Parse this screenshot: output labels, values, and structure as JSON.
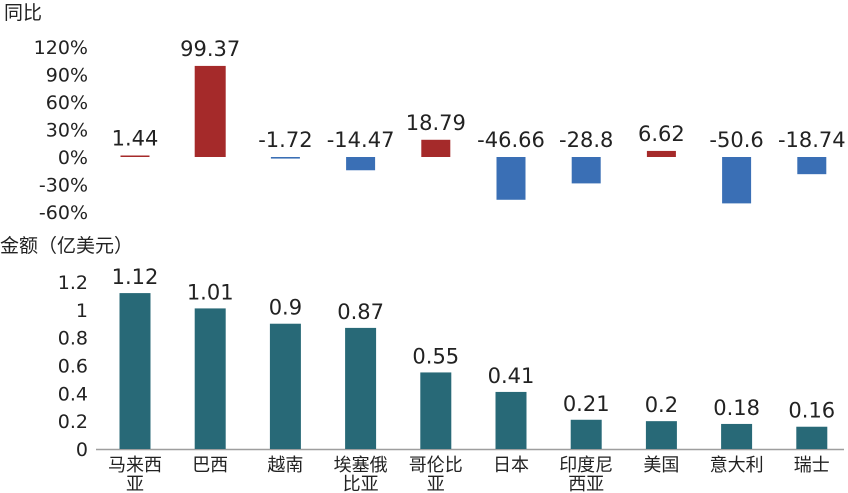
{
  "chart_data": [
    {
      "type": "bar",
      "ylabel": "同比",
      "categories": [
        "马来西亚",
        "巴西",
        "越南",
        "埃塞俄比亚",
        "哥伦比亚",
        "日本",
        "印度尼西亚",
        "美国",
        "意大利",
        "瑞士"
      ],
      "values": [
        1.44,
        99.37,
        -1.72,
        -14.47,
        18.79,
        -46.66,
        -28.8,
        6.62,
        -50.6,
        -18.74
      ],
      "value_labels": [
        "1.44",
        "99.37",
        "-1.72",
        "-14.47",
        "18.79",
        "-46.66",
        "-28.8",
        "6.62",
        "-50.6",
        "-18.74"
      ],
      "yticks": [
        "120%",
        "90%",
        "60%",
        "30%",
        "0%",
        "-30%",
        "-60%"
      ],
      "ylim": [
        -60,
        120
      ],
      "colors": {
        "positive": "#A52A2A",
        "negative": "#3A6FB5"
      },
      "grid": false
    },
    {
      "type": "bar",
      "ylabel": "金额（亿美元）",
      "categories": [
        "马来西亚",
        "巴西",
        "越南",
        "埃塞俄比亚",
        "哥伦比亚",
        "日本",
        "印度尼西亚",
        "美国",
        "意大利",
        "瑞士"
      ],
      "category_lines": [
        [
          "马来西",
          "亚"
        ],
        [
          "巴西"
        ],
        [
          "越南"
        ],
        [
          "埃塞俄",
          "比亚"
        ],
        [
          "哥伦比",
          "亚"
        ],
        [
          "日本"
        ],
        [
          "印度尼",
          "西亚"
        ],
        [
          "美国"
        ],
        [
          "意大利"
        ],
        [
          "瑞士"
        ]
      ],
      "values": [
        1.12,
        1.01,
        0.9,
        0.87,
        0.55,
        0.41,
        0.21,
        0.2,
        0.18,
        0.16
      ],
      "value_labels": [
        "1.12",
        "1.01",
        "0.9",
        "0.87",
        "0.55",
        "0.41",
        "0.21",
        "0.2",
        "0.18",
        "0.16"
      ],
      "yticks": [
        "1.2",
        "1",
        "0.8",
        "0.6",
        "0.4",
        "0.2",
        "0"
      ],
      "ylim": [
        0,
        1.2
      ],
      "colors": {
        "bar": "#286977",
        "axis": "#9E9E9E"
      },
      "grid": false
    }
  ]
}
